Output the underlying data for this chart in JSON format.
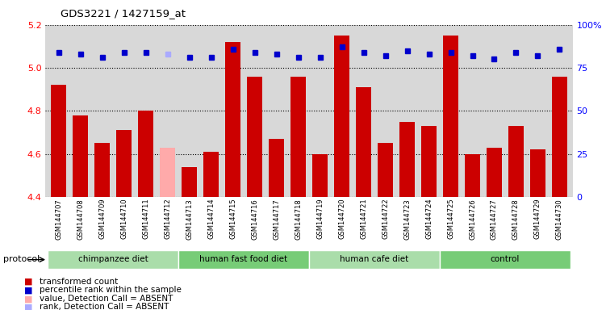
{
  "title": "GDS3221 / 1427159_at",
  "samples": [
    "GSM144707",
    "GSM144708",
    "GSM144709",
    "GSM144710",
    "GSM144711",
    "GSM144712",
    "GSM144713",
    "GSM144714",
    "GSM144715",
    "GSM144716",
    "GSM144717",
    "GSM144718",
    "GSM144719",
    "GSM144720",
    "GSM144721",
    "GSM144722",
    "GSM144723",
    "GSM144724",
    "GSM144725",
    "GSM144726",
    "GSM144727",
    "GSM144728",
    "GSM144729",
    "GSM144730"
  ],
  "bar_values": [
    4.92,
    4.78,
    4.65,
    4.71,
    4.8,
    4.63,
    4.54,
    4.61,
    5.12,
    4.96,
    4.67,
    4.96,
    4.6,
    5.15,
    4.91,
    4.65,
    4.75,
    4.73,
    5.15,
    4.6,
    4.63,
    4.73,
    4.62,
    4.96
  ],
  "bar_colors": [
    "#cc0000",
    "#cc0000",
    "#cc0000",
    "#cc0000",
    "#cc0000",
    "#ffaaaa",
    "#cc0000",
    "#cc0000",
    "#cc0000",
    "#cc0000",
    "#cc0000",
    "#cc0000",
    "#cc0000",
    "#cc0000",
    "#cc0000",
    "#cc0000",
    "#cc0000",
    "#cc0000",
    "#cc0000",
    "#cc0000",
    "#cc0000",
    "#cc0000",
    "#cc0000",
    "#cc0000"
  ],
  "percentile_values": [
    84,
    83,
    81,
    84,
    84,
    83,
    81,
    81,
    86,
    84,
    83,
    81,
    81,
    87,
    84,
    82,
    85,
    83,
    84,
    82,
    80,
    84,
    82,
    86
  ],
  "percentile_colors": [
    "#0000cc",
    "#0000cc",
    "#0000cc",
    "#0000cc",
    "#0000cc",
    "#aaaaff",
    "#0000cc",
    "#0000cc",
    "#0000cc",
    "#0000cc",
    "#0000cc",
    "#0000cc",
    "#0000cc",
    "#0000cc",
    "#0000cc",
    "#0000cc",
    "#0000cc",
    "#0000cc",
    "#0000cc",
    "#0000cc",
    "#0000cc",
    "#0000cc",
    "#0000cc",
    "#0000cc"
  ],
  "groups": [
    {
      "label": "chimpanzee diet",
      "start": 0,
      "end": 5
    },
    {
      "label": "human fast food diet",
      "start": 6,
      "end": 11
    },
    {
      "label": "human cafe diet",
      "start": 12,
      "end": 17
    },
    {
      "label": "control",
      "start": 18,
      "end": 23
    }
  ],
  "group_colors": [
    "#aaddaa",
    "#77cc77",
    "#aaddaa",
    "#77cc77"
  ],
  "ylim_left": [
    4.4,
    5.2
  ],
  "ylim_right": [
    0,
    100
  ],
  "yticks_left": [
    4.4,
    4.6,
    4.8,
    5.0,
    5.2
  ],
  "yticks_right": [
    0,
    25,
    50,
    75,
    100
  ],
  "bar_width": 0.7,
  "background_color": "#ffffff",
  "plot_bg_color": "#d8d8d8"
}
